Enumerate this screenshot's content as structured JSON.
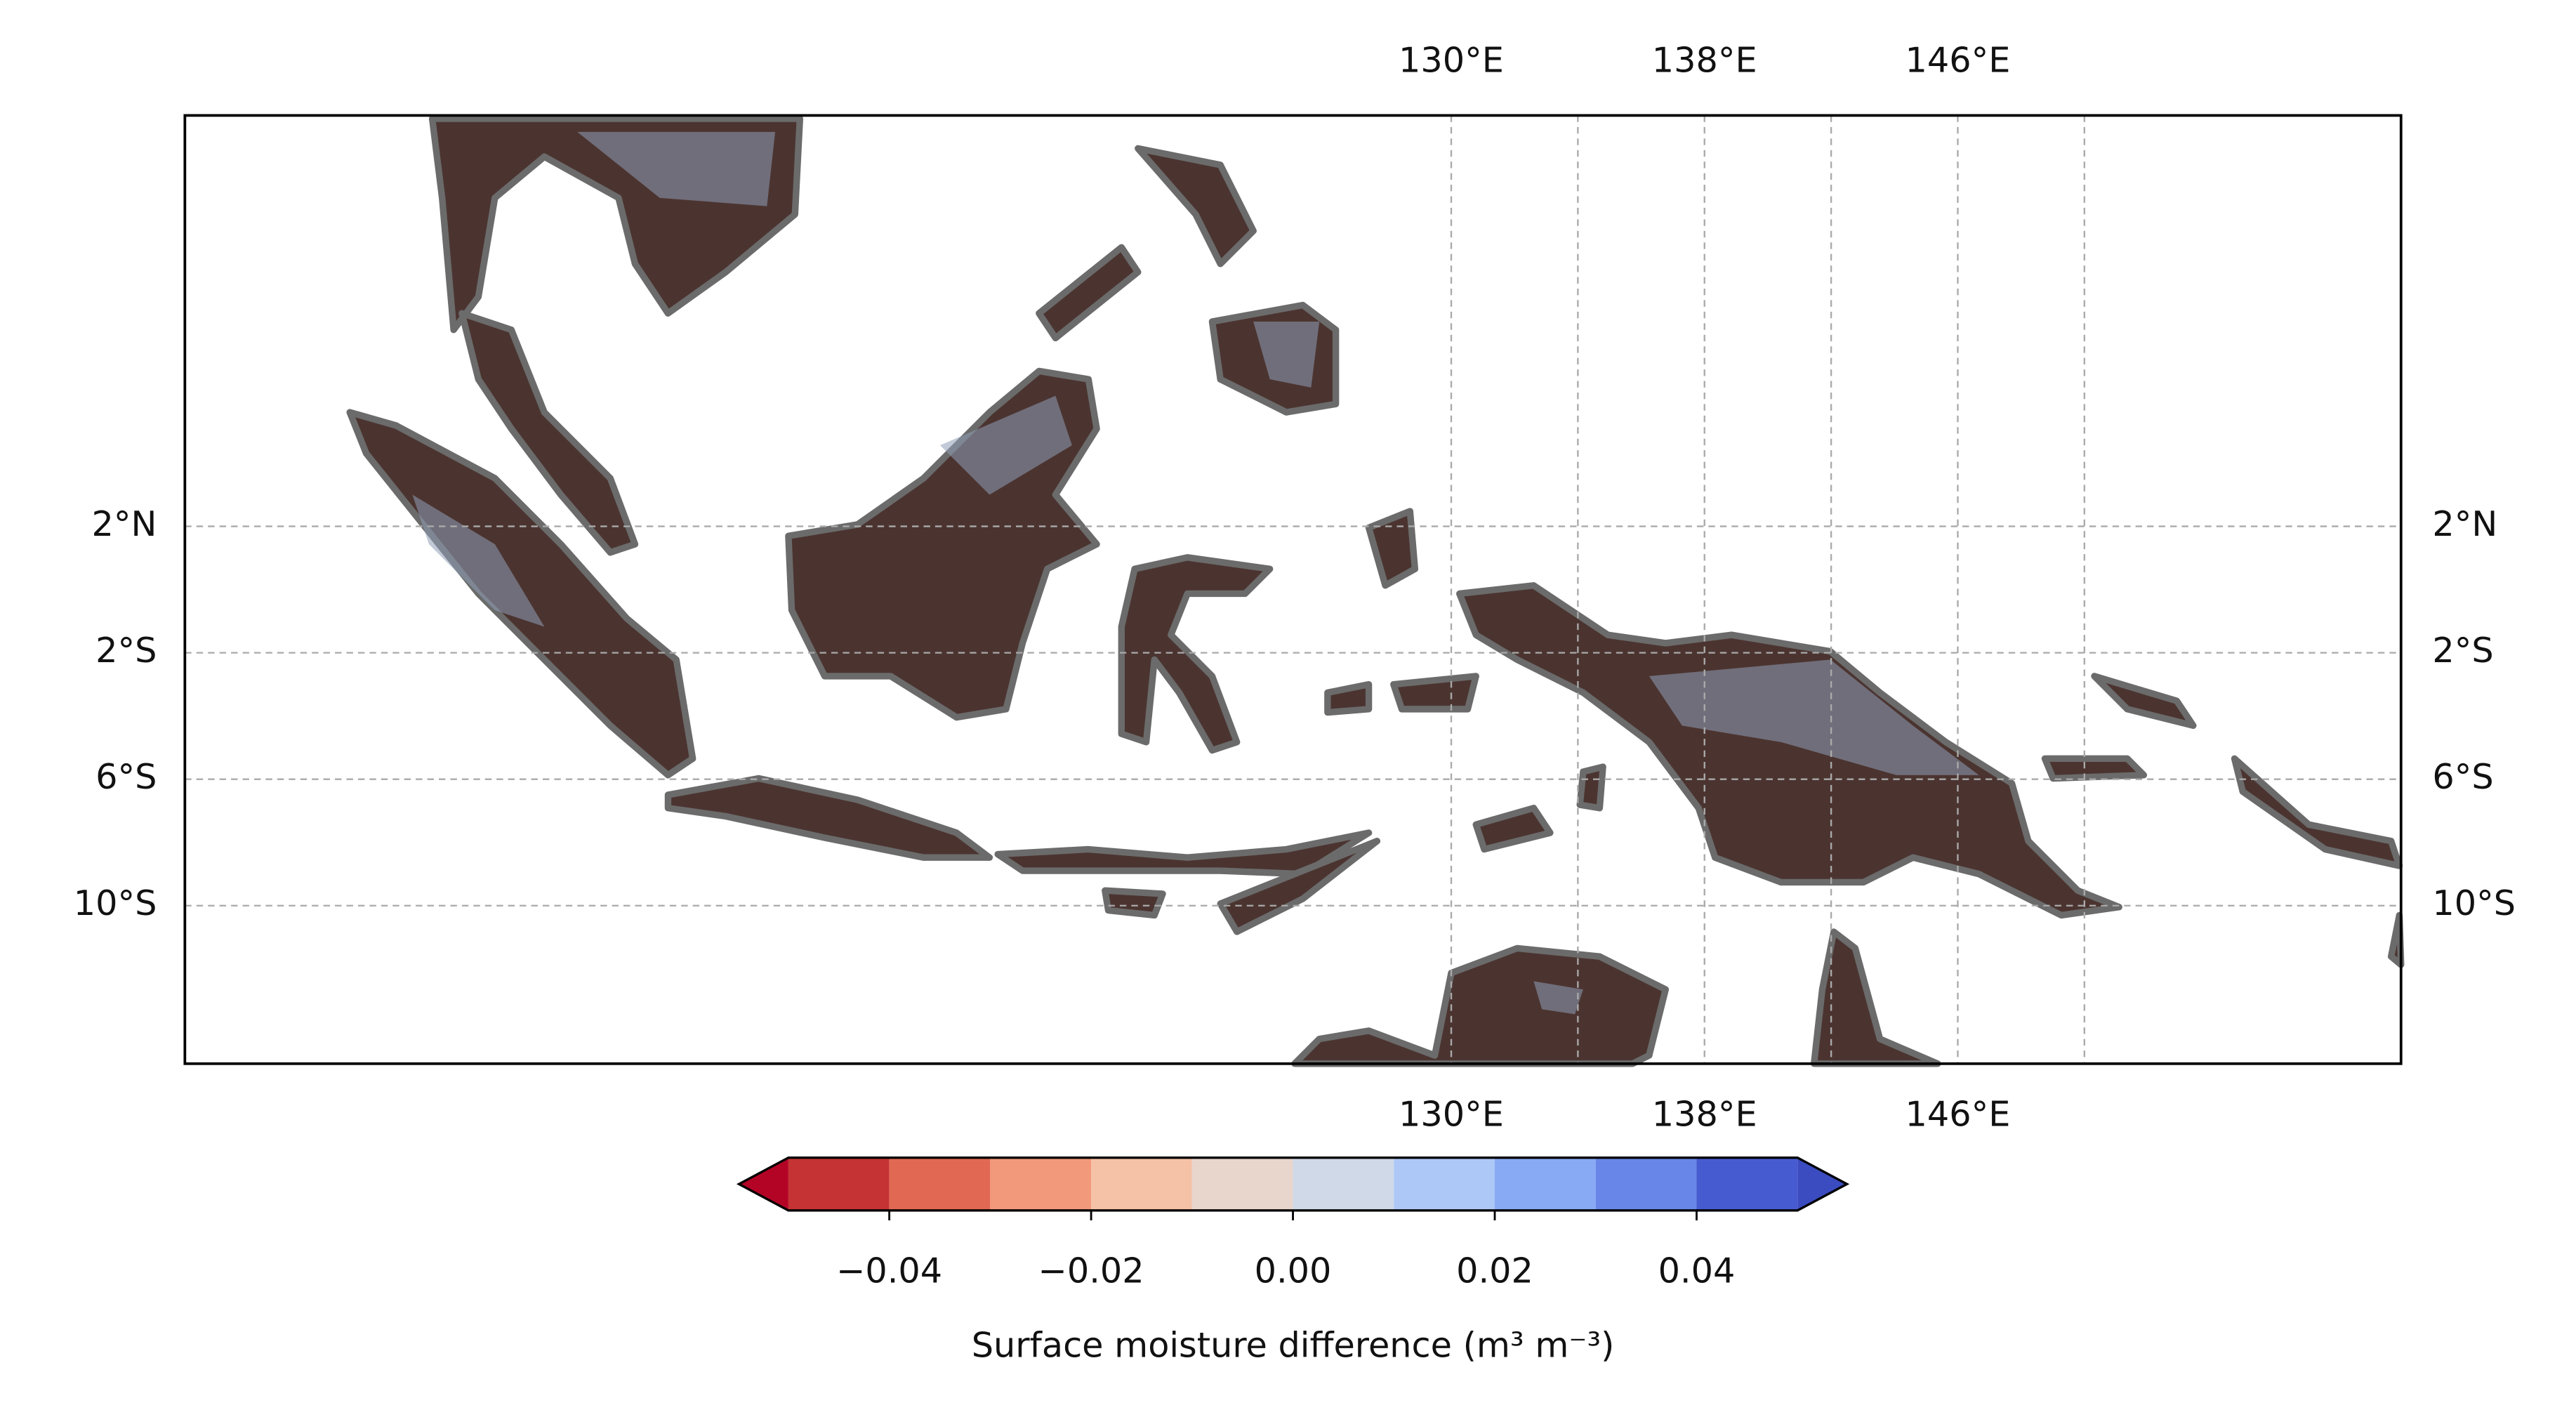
{
  "map": {
    "extent": [
      90,
      160,
      -15,
      15
    ],
    "lon_gridlines": [
      130,
      134,
      138,
      142,
      146,
      150
    ],
    "lat_gridlines": [
      2,
      -2,
      -6,
      -10
    ],
    "lon_labels": [
      {
        "value": 130,
        "label": "130°E"
      },
      {
        "value": 138,
        "label": "138°E"
      },
      {
        "value": 146,
        "label": "146°E"
      }
    ],
    "lat_labels": [
      {
        "value": 2,
        "label": "2°N"
      },
      {
        "value": -2,
        "label": "2°S"
      },
      {
        "value": -6,
        "label": "6°S"
      },
      {
        "value": -10,
        "label": "10°S"
      }
    ]
  },
  "colorbar": {
    "bounds": [
      -0.05,
      -0.04,
      -0.03,
      -0.02,
      -0.01,
      0,
      0.01,
      0.02,
      0.03,
      0.04,
      0.05
    ],
    "colors": [
      "#c53334",
      "#e16852",
      "#f3997b",
      "#f5c1a7",
      "#e8d5cc",
      "#cfd9e7",
      "#adc7f6",
      "#88a9f3",
      "#6886e8",
      "#475bd0"
    ],
    "extend_colors": [
      "#b40426",
      "#3b4cc0"
    ],
    "ticks": [
      {
        "value": -0.04,
        "label": "−0.04"
      },
      {
        "value": -0.02,
        "label": "−0.02"
      },
      {
        "value": 0,
        "label": "0.00"
      },
      {
        "value": 0.02,
        "label": "0.02"
      },
      {
        "value": 0.04,
        "label": "0.04"
      }
    ],
    "label": "Surface moisture difference (m³ m⁻³)"
  }
}
